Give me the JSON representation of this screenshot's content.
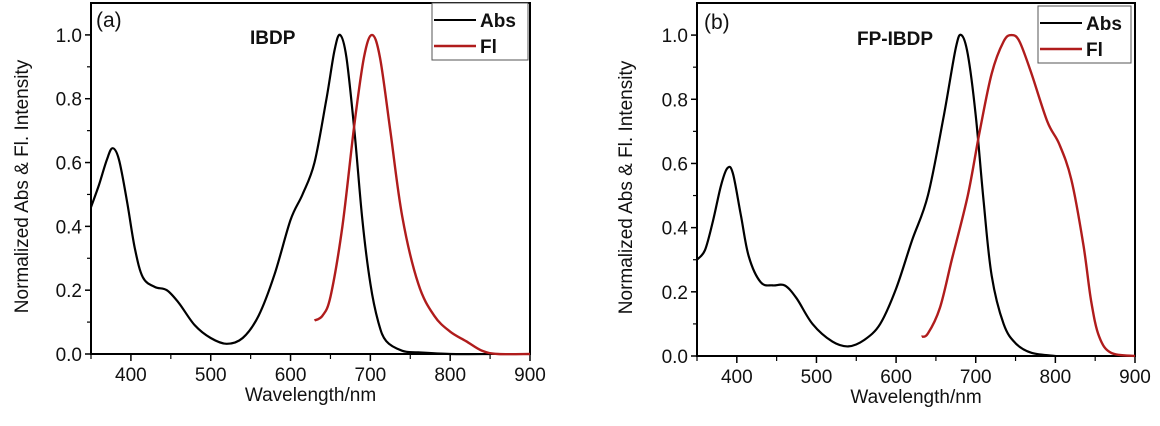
{
  "chart_data": [
    {
      "type": "line",
      "panel_label": "(a)",
      "annotation": "IBDP",
      "title": "",
      "xlabel": "Wavelength/nm",
      "ylabel": "Normalized Abs  & Fl. Intensity",
      "xlim": [
        350,
        900
      ],
      "ylim": [
        0,
        1.1
      ],
      "xticks": [
        400,
        500,
        600,
        700,
        800,
        900
      ],
      "xtick_labels": [
        "400",
        "500",
        "600",
        "700",
        "800",
        "900"
      ],
      "xminor": [
        350,
        450,
        550,
        650,
        750,
        850
      ],
      "yticks": [
        0.0,
        0.2,
        0.4,
        0.6,
        0.8,
        1.0
      ],
      "ytick_labels": [
        "0.0",
        "0.2",
        "0.4",
        "0.6",
        "0.8",
        "1.0"
      ],
      "yminor": [
        0.1,
        0.3,
        0.5,
        0.7,
        0.9
      ],
      "grid": false,
      "legend": "top-right",
      "series": [
        {
          "name": "Abs",
          "color": "#000000",
          "x": [
            350,
            360,
            370,
            377,
            385,
            395,
            405,
            415,
            430,
            445,
            460,
            480,
            500,
            520,
            540,
            560,
            580,
            600,
            615,
            630,
            645,
            655,
            662,
            670,
            680,
            690,
            700,
            710,
            720,
            740,
            760,
            800,
            850
          ],
          "y": [
            0.46,
            0.53,
            0.61,
            0.645,
            0.61,
            0.48,
            0.33,
            0.24,
            0.21,
            0.2,
            0.16,
            0.09,
            0.05,
            0.032,
            0.05,
            0.12,
            0.25,
            0.42,
            0.5,
            0.6,
            0.8,
            0.95,
            1.0,
            0.93,
            0.7,
            0.42,
            0.22,
            0.1,
            0.04,
            0.01,
            0.005,
            0.0,
            0.0
          ]
        },
        {
          "name": "Fl",
          "color": "#b01c1c",
          "x": [
            630,
            640,
            650,
            665,
            680,
            692,
            702,
            712,
            725,
            740,
            760,
            780,
            800,
            820,
            840,
            860,
            900
          ],
          "y": [
            0.105,
            0.12,
            0.18,
            0.4,
            0.72,
            0.93,
            1.0,
            0.93,
            0.7,
            0.43,
            0.22,
            0.12,
            0.07,
            0.04,
            0.01,
            0.0,
            0.0
          ]
        }
      ]
    },
    {
      "type": "line",
      "panel_label": "(b)",
      "annotation": "FP-IBDP",
      "title": "",
      "xlabel": "Wavelength/nm",
      "ylabel": "Normalized Abs  & Fl. Intensity",
      "xlim": [
        350,
        900
      ],
      "ylim": [
        0,
        1.1
      ],
      "xticks": [
        400,
        500,
        600,
        700,
        800,
        900
      ],
      "xtick_labels": [
        "400",
        "500",
        "600",
        "700",
        "800",
        "900"
      ],
      "xminor": [
        350,
        450,
        550,
        650,
        750,
        850
      ],
      "yticks": [
        0.0,
        0.2,
        0.4,
        0.6,
        0.8,
        1.0
      ],
      "ytick_labels": [
        "0.0",
        "0.2",
        "0.4",
        "0.6",
        "0.8",
        "1.0"
      ],
      "yminor": [
        0.1,
        0.3,
        0.5,
        0.7,
        0.9
      ],
      "grid": false,
      "legend": "top-right",
      "series": [
        {
          "name": "Abs",
          "color": "#000000",
          "x": [
            350,
            360,
            370,
            380,
            388,
            395,
            405,
            415,
            430,
            445,
            460,
            475,
            495,
            520,
            540,
            560,
            580,
            600,
            620,
            640,
            660,
            675,
            682,
            690,
            700,
            710,
            720,
            735,
            750,
            770,
            800
          ],
          "y": [
            0.3,
            0.33,
            0.42,
            0.53,
            0.585,
            0.57,
            0.44,
            0.31,
            0.23,
            0.22,
            0.22,
            0.18,
            0.1,
            0.045,
            0.03,
            0.05,
            0.1,
            0.21,
            0.36,
            0.5,
            0.75,
            0.96,
            1.0,
            0.94,
            0.75,
            0.48,
            0.25,
            0.1,
            0.04,
            0.01,
            0.0
          ]
        },
        {
          "name": "Fl",
          "color": "#b01c1c",
          "x": [
            632,
            640,
            655,
            670,
            690,
            705,
            720,
            735,
            745,
            755,
            770,
            790,
            805,
            820,
            835,
            845,
            855,
            870,
            900
          ],
          "y": [
            0.06,
            0.07,
            0.15,
            0.3,
            0.5,
            0.7,
            0.88,
            0.98,
            1.0,
            0.98,
            0.88,
            0.73,
            0.66,
            0.55,
            0.35,
            0.17,
            0.06,
            0.01,
            0.0
          ]
        }
      ]
    }
  ]
}
